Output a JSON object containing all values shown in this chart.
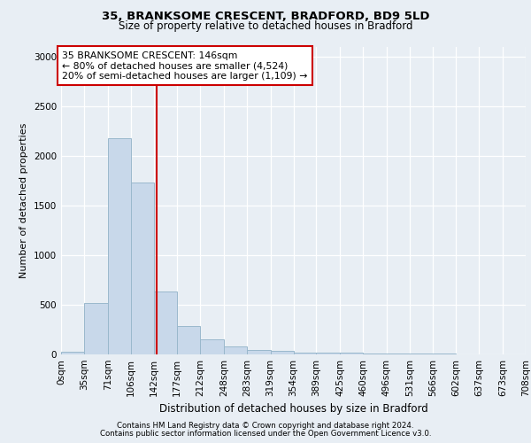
{
  "title1": "35, BRANKSOME CRESCENT, BRADFORD, BD9 5LD",
  "title2": "Size of property relative to detached houses in Bradford",
  "xlabel": "Distribution of detached houses by size in Bradford",
  "ylabel": "Number of detached properties",
  "bar_color": "#c8d8ea",
  "bar_edge_color": "#9ab8cc",
  "vline_x": 146,
  "vline_color": "#cc0000",
  "annotation_title": "35 BRANKSOME CRESCENT: 146sqm",
  "annotation_line2": "← 80% of detached houses are smaller (4,524)",
  "annotation_line3": "20% of semi-detached houses are larger (1,109) →",
  "annotation_box_facecolor": "#ffffff",
  "annotation_box_edgecolor": "#cc0000",
  "footer1": "Contains HM Land Registry data © Crown copyright and database right 2024.",
  "footer2": "Contains public sector information licensed under the Open Government Licence v3.0.",
  "bin_edges": [
    0,
    35,
    71,
    106,
    142,
    177,
    212,
    248,
    283,
    319,
    354,
    389,
    425,
    460,
    496,
    531,
    566,
    602,
    637,
    673,
    708
  ],
  "bin_labels": [
    "0sqm",
    "35sqm",
    "71sqm",
    "106sqm",
    "142sqm",
    "177sqm",
    "212sqm",
    "248sqm",
    "283sqm",
    "319sqm",
    "354sqm",
    "389sqm",
    "425sqm",
    "460sqm",
    "496sqm",
    "531sqm",
    "566sqm",
    "602sqm",
    "637sqm",
    "673sqm",
    "708sqm"
  ],
  "bar_heights": [
    25,
    520,
    2180,
    1730,
    635,
    285,
    155,
    80,
    48,
    38,
    22,
    18,
    15,
    12,
    10,
    8,
    5,
    4,
    3,
    2
  ],
  "ylim": [
    0,
    3100
  ],
  "yticks": [
    0,
    500,
    1000,
    1500,
    2000,
    2500,
    3000
  ],
  "bg_color": "#e8eef4",
  "plot_bg_color": "#e8eef4",
  "grid_color": "#ffffff",
  "title1_fontsize": 9.5,
  "title2_fontsize": 8.5,
  "ylabel_fontsize": 8.0,
  "xlabel_fontsize": 8.5,
  "tick_fontsize": 7.5,
  "footer_fontsize": 6.2,
  "annot_fontsize": 7.8
}
